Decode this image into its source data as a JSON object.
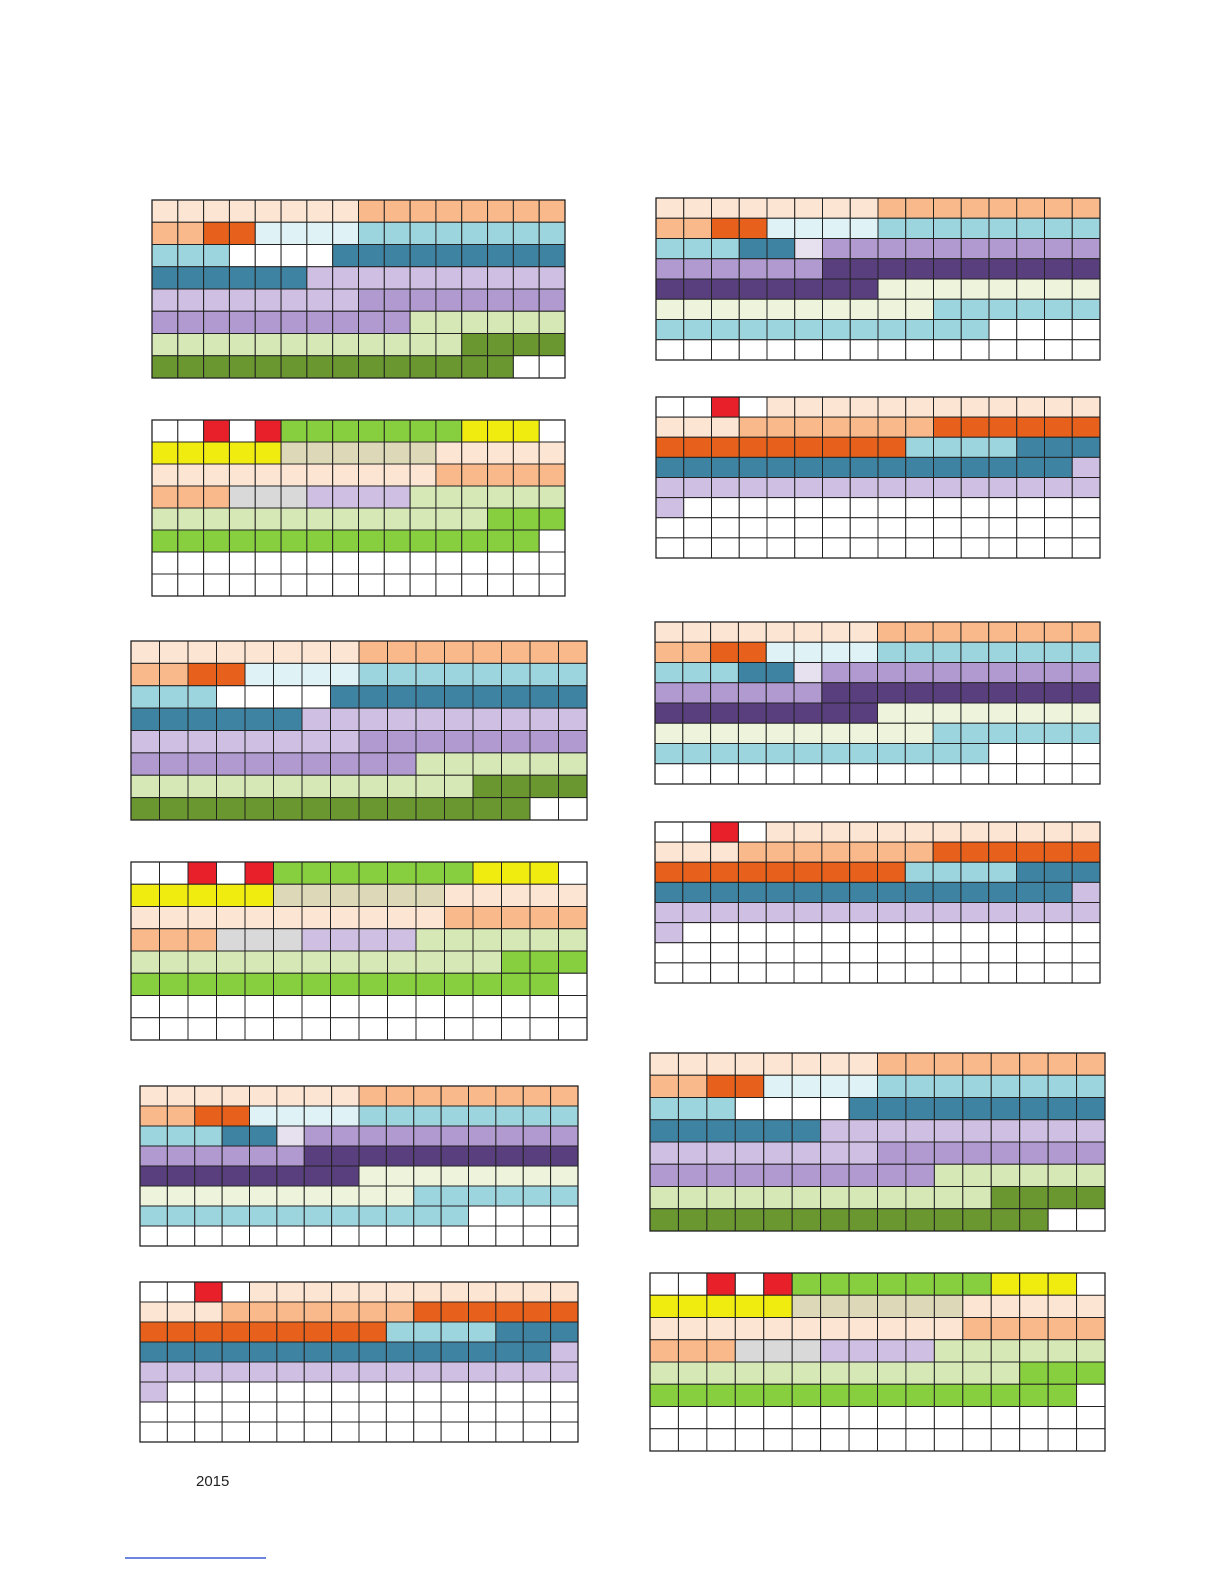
{
  "footer": {
    "year": "2015"
  }
}
